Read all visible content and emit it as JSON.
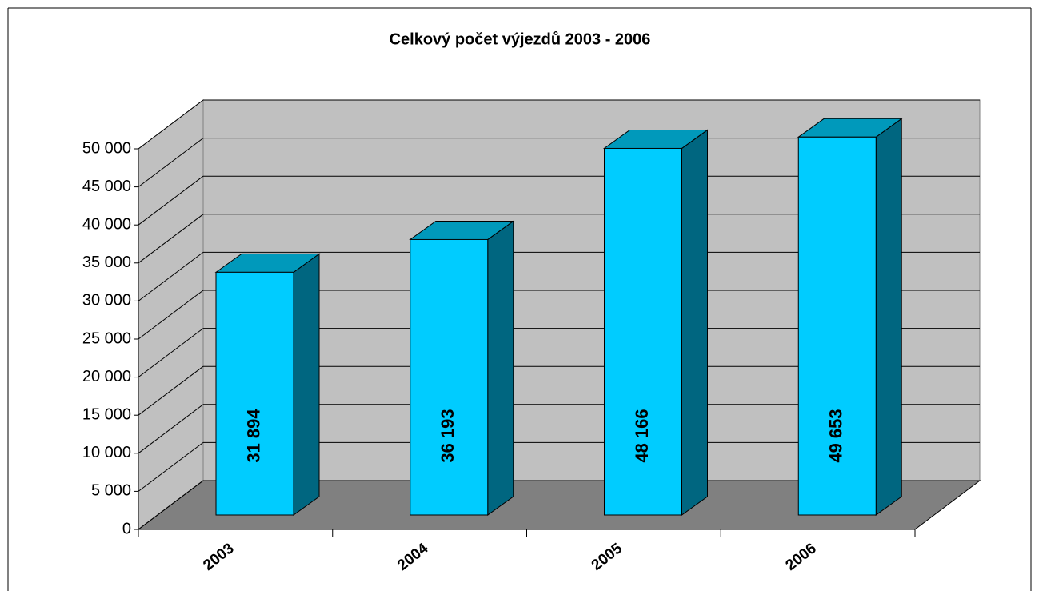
{
  "chart_data": {
    "type": "bar3d",
    "title": "Celkový počet výjezdů 2003 - 2006",
    "categories": [
      "2003",
      "2004",
      "2005",
      "2006"
    ],
    "values": [
      31894,
      36193,
      48166,
      49653
    ],
    "value_labels": [
      "31 894",
      "36 193",
      "48 166",
      "49 653"
    ],
    "color": "#00ccff",
    "ylim": [
      0,
      50000
    ],
    "yticks": [
      0,
      {
        "value": 5000,
        "label": "5 000"
      },
      {
        "value": 10000,
        "label": "10 000"
      },
      {
        "value": 15000,
        "label": "15 000"
      },
      {
        "value": 20000,
        "label": "20 000"
      },
      {
        "value": 25000,
        "label": "25 000"
      },
      {
        "value": 30000,
        "label": "30 000"
      },
      {
        "value": 35000,
        "label": "35 000"
      },
      {
        "value": 40000,
        "label": "40 000"
      },
      {
        "value": 45000,
        "label": "45 000"
      },
      {
        "value": 50000,
        "label": "50 000"
      }
    ],
    "grid": true
  }
}
